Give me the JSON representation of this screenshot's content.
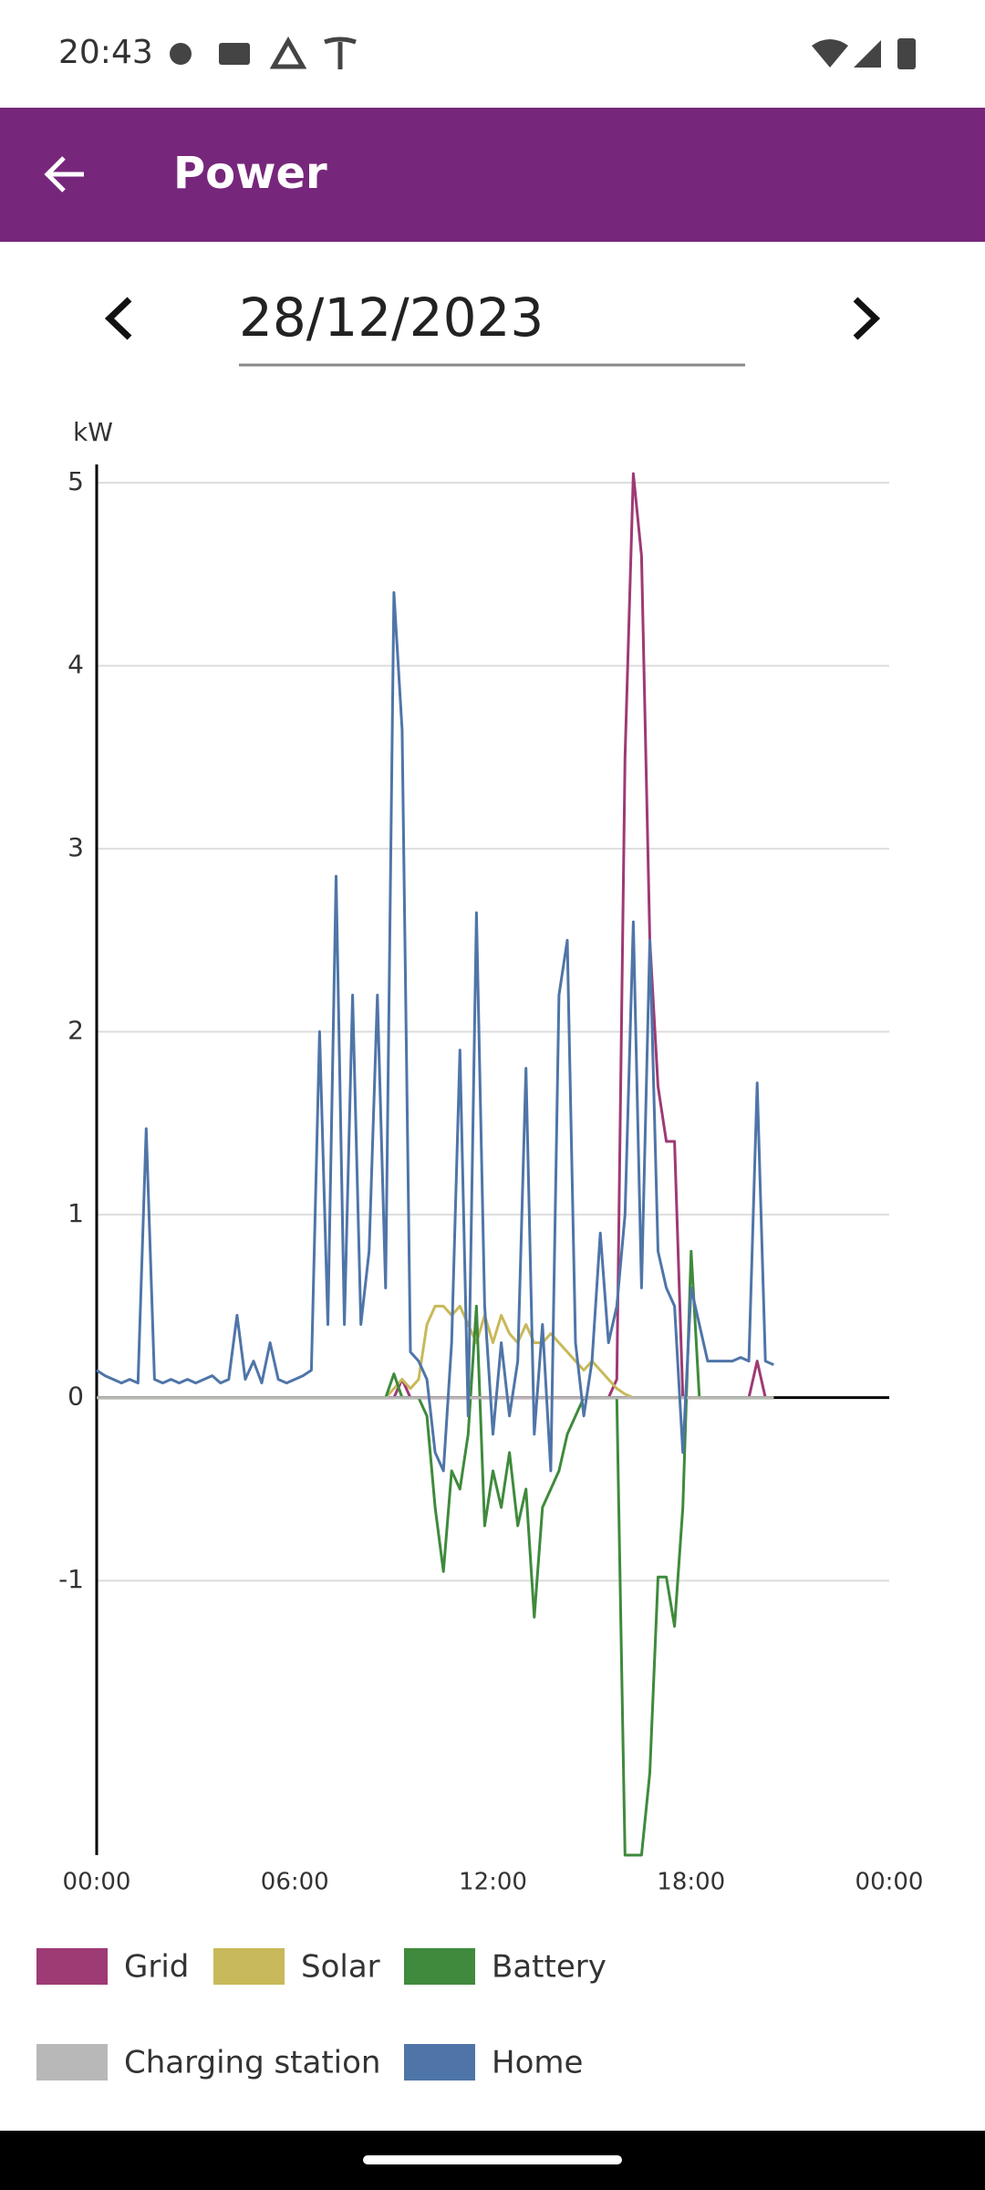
{
  "status_bar": {
    "time": "20:43"
  },
  "app_bar": {
    "title": "Power"
  },
  "date_picker": {
    "date": "28/12/2023"
  },
  "chart_data": {
    "type": "line",
    "y_label": "kW",
    "xlim": [
      0,
      24
    ],
    "ylim": [
      -2.5,
      5.1
    ],
    "xticks": [
      {
        "value": 0,
        "label": "00:00"
      },
      {
        "value": 6,
        "label": "06:00"
      },
      {
        "value": 12,
        "label": "12:00"
      },
      {
        "value": 18,
        "label": "18:00"
      },
      {
        "value": 24,
        "label": "00:00"
      }
    ],
    "yticks": [
      -1,
      0,
      1,
      2,
      3,
      4,
      5
    ],
    "grid": true,
    "x": [
      0,
      0.25,
      0.5,
      0.75,
      1,
      1.25,
      1.5,
      1.75,
      2,
      2.25,
      2.5,
      2.75,
      3,
      3.25,
      3.5,
      3.75,
      4,
      4.25,
      4.5,
      4.75,
      5,
      5.25,
      5.5,
      5.75,
      6,
      6.25,
      6.5,
      6.75,
      7,
      7.25,
      7.5,
      7.75,
      8,
      8.25,
      8.5,
      8.75,
      9,
      9.25,
      9.5,
      9.75,
      10,
      10.25,
      10.5,
      10.75,
      11,
      11.25,
      11.5,
      11.75,
      12,
      12.25,
      12.5,
      12.75,
      13,
      13.25,
      13.5,
      13.75,
      14,
      14.25,
      14.5,
      14.75,
      15,
      15.25,
      15.5,
      15.75,
      16,
      16.25,
      16.5,
      16.75,
      17,
      17.25,
      17.5,
      17.75,
      18,
      18.25,
      18.5,
      18.75,
      19,
      19.25,
      19.5,
      19.75,
      20,
      20.25,
      20.5
    ],
    "series": [
      {
        "name": "Grid",
        "color": "#9e3a74",
        "values": [
          0,
          0,
          0,
          0,
          0,
          0,
          0,
          0,
          0,
          0,
          0,
          0,
          0,
          0,
          0,
          0,
          0,
          0,
          0,
          0,
          0,
          0,
          0,
          0,
          0,
          0,
          0,
          0,
          0,
          0,
          0,
          0,
          0,
          0,
          0,
          0,
          0,
          0.1,
          0,
          0,
          0,
          0,
          0,
          0,
          0,
          0,
          0,
          0,
          0,
          0,
          0,
          0,
          0,
          0,
          0,
          0,
          0,
          0,
          0,
          0,
          0,
          0,
          0,
          0.1,
          3.5,
          5.05,
          4.6,
          2.5,
          1.7,
          1.4,
          1.4,
          0,
          0,
          0,
          0,
          0,
          0,
          0,
          0,
          0,
          0.2,
          0,
          0
        ]
      },
      {
        "name": "Solar",
        "color": "#c8b95a",
        "values": [
          0,
          0,
          0,
          0,
          0,
          0,
          0,
          0,
          0,
          0,
          0,
          0,
          0,
          0,
          0,
          0,
          0,
          0,
          0,
          0,
          0,
          0,
          0,
          0,
          0,
          0,
          0,
          0,
          0,
          0,
          0,
          0,
          0,
          0,
          0,
          0,
          0.05,
          0.1,
          0.05,
          0.1,
          0.4,
          0.5,
          0.5,
          0.45,
          0.5,
          0.4,
          0.3,
          0.45,
          0.3,
          0.45,
          0.35,
          0.3,
          0.4,
          0.3,
          0.3,
          0.35,
          0.3,
          0.25,
          0.2,
          0.15,
          0.2,
          0.15,
          0.1,
          0.05,
          0.02,
          0,
          0,
          0,
          0,
          0,
          0,
          0,
          0,
          0,
          0,
          0,
          0,
          0,
          0,
          0,
          0,
          0,
          0
        ]
      },
      {
        "name": "Battery",
        "color": "#3f8a3c",
        "values": [
          0,
          0,
          0,
          0,
          0,
          0,
          0,
          0,
          0,
          0,
          0,
          0,
          0,
          0,
          0,
          0,
          0,
          0,
          0,
          0,
          0,
          0,
          0,
          0,
          0,
          0,
          0,
          0,
          0,
          0,
          0,
          0,
          0,
          0,
          0,
          0,
          0.13,
          0,
          0,
          0,
          -0.1,
          -0.6,
          -0.95,
          -0.4,
          -0.5,
          -0.2,
          0.5,
          -0.7,
          -0.4,
          -0.6,
          -0.3,
          -0.7,
          -0.5,
          -1.2,
          -0.6,
          -0.5,
          -0.4,
          -0.2,
          -0.1,
          0,
          0,
          0,
          0,
          0,
          -2.5,
          -2.5,
          -2.5,
          -2.05,
          -0.98,
          -0.98,
          -1.25,
          -0.6,
          0.8,
          0,
          0,
          0,
          0,
          0,
          0,
          0,
          0,
          0,
          0
        ]
      },
      {
        "name": "Charging station",
        "color": "#b8b8b8",
        "values": [
          0,
          0,
          0,
          0,
          0,
          0,
          0,
          0,
          0,
          0,
          0,
          0,
          0,
          0,
          0,
          0,
          0,
          0,
          0,
          0,
          0,
          0,
          0,
          0,
          0,
          0,
          0,
          0,
          0,
          0,
          0,
          0,
          0,
          0,
          0,
          0,
          0,
          0,
          0,
          0,
          0,
          0,
          0,
          0,
          0,
          0,
          0,
          0,
          0,
          0,
          0,
          0,
          0,
          0,
          0,
          0,
          0,
          0,
          0,
          0,
          0,
          0,
          0,
          0,
          0,
          0,
          0,
          0,
          0,
          0,
          0,
          0,
          0,
          0,
          0,
          0,
          0,
          0,
          0,
          0,
          0,
          0,
          0
        ]
      },
      {
        "name": "Home",
        "color": "#4f75a8",
        "values": [
          0.15,
          0.12,
          0.1,
          0.08,
          0.1,
          0.08,
          1.47,
          0.1,
          0.08,
          0.1,
          0.08,
          0.1,
          0.08,
          0.1,
          0.12,
          0.08,
          0.1,
          0.45,
          0.1,
          0.2,
          0.08,
          0.3,
          0.1,
          0.08,
          0.1,
          0.12,
          0.15,
          2.0,
          0.4,
          2.85,
          0.4,
          2.2,
          0.4,
          0.8,
          2.2,
          0.6,
          4.4,
          3.65,
          0.25,
          0.2,
          0.1,
          -0.3,
          -0.4,
          0.3,
          1.9,
          -0.1,
          2.65,
          0.5,
          -0.2,
          0.3,
          -0.1,
          0.2,
          1.8,
          -0.2,
          0.4,
          -0.4,
          2.2,
          2.5,
          0.3,
          -0.1,
          0.2,
          0.9,
          0.3,
          0.5,
          1.0,
          2.6,
          0.6,
          2.5,
          0.8,
          0.6,
          0.5,
          -0.3,
          0.6,
          0.4,
          0.2,
          0.2,
          0.2,
          0.2,
          0.22,
          0.2,
          1.72,
          0.2,
          0.18
        ]
      }
    ]
  }
}
